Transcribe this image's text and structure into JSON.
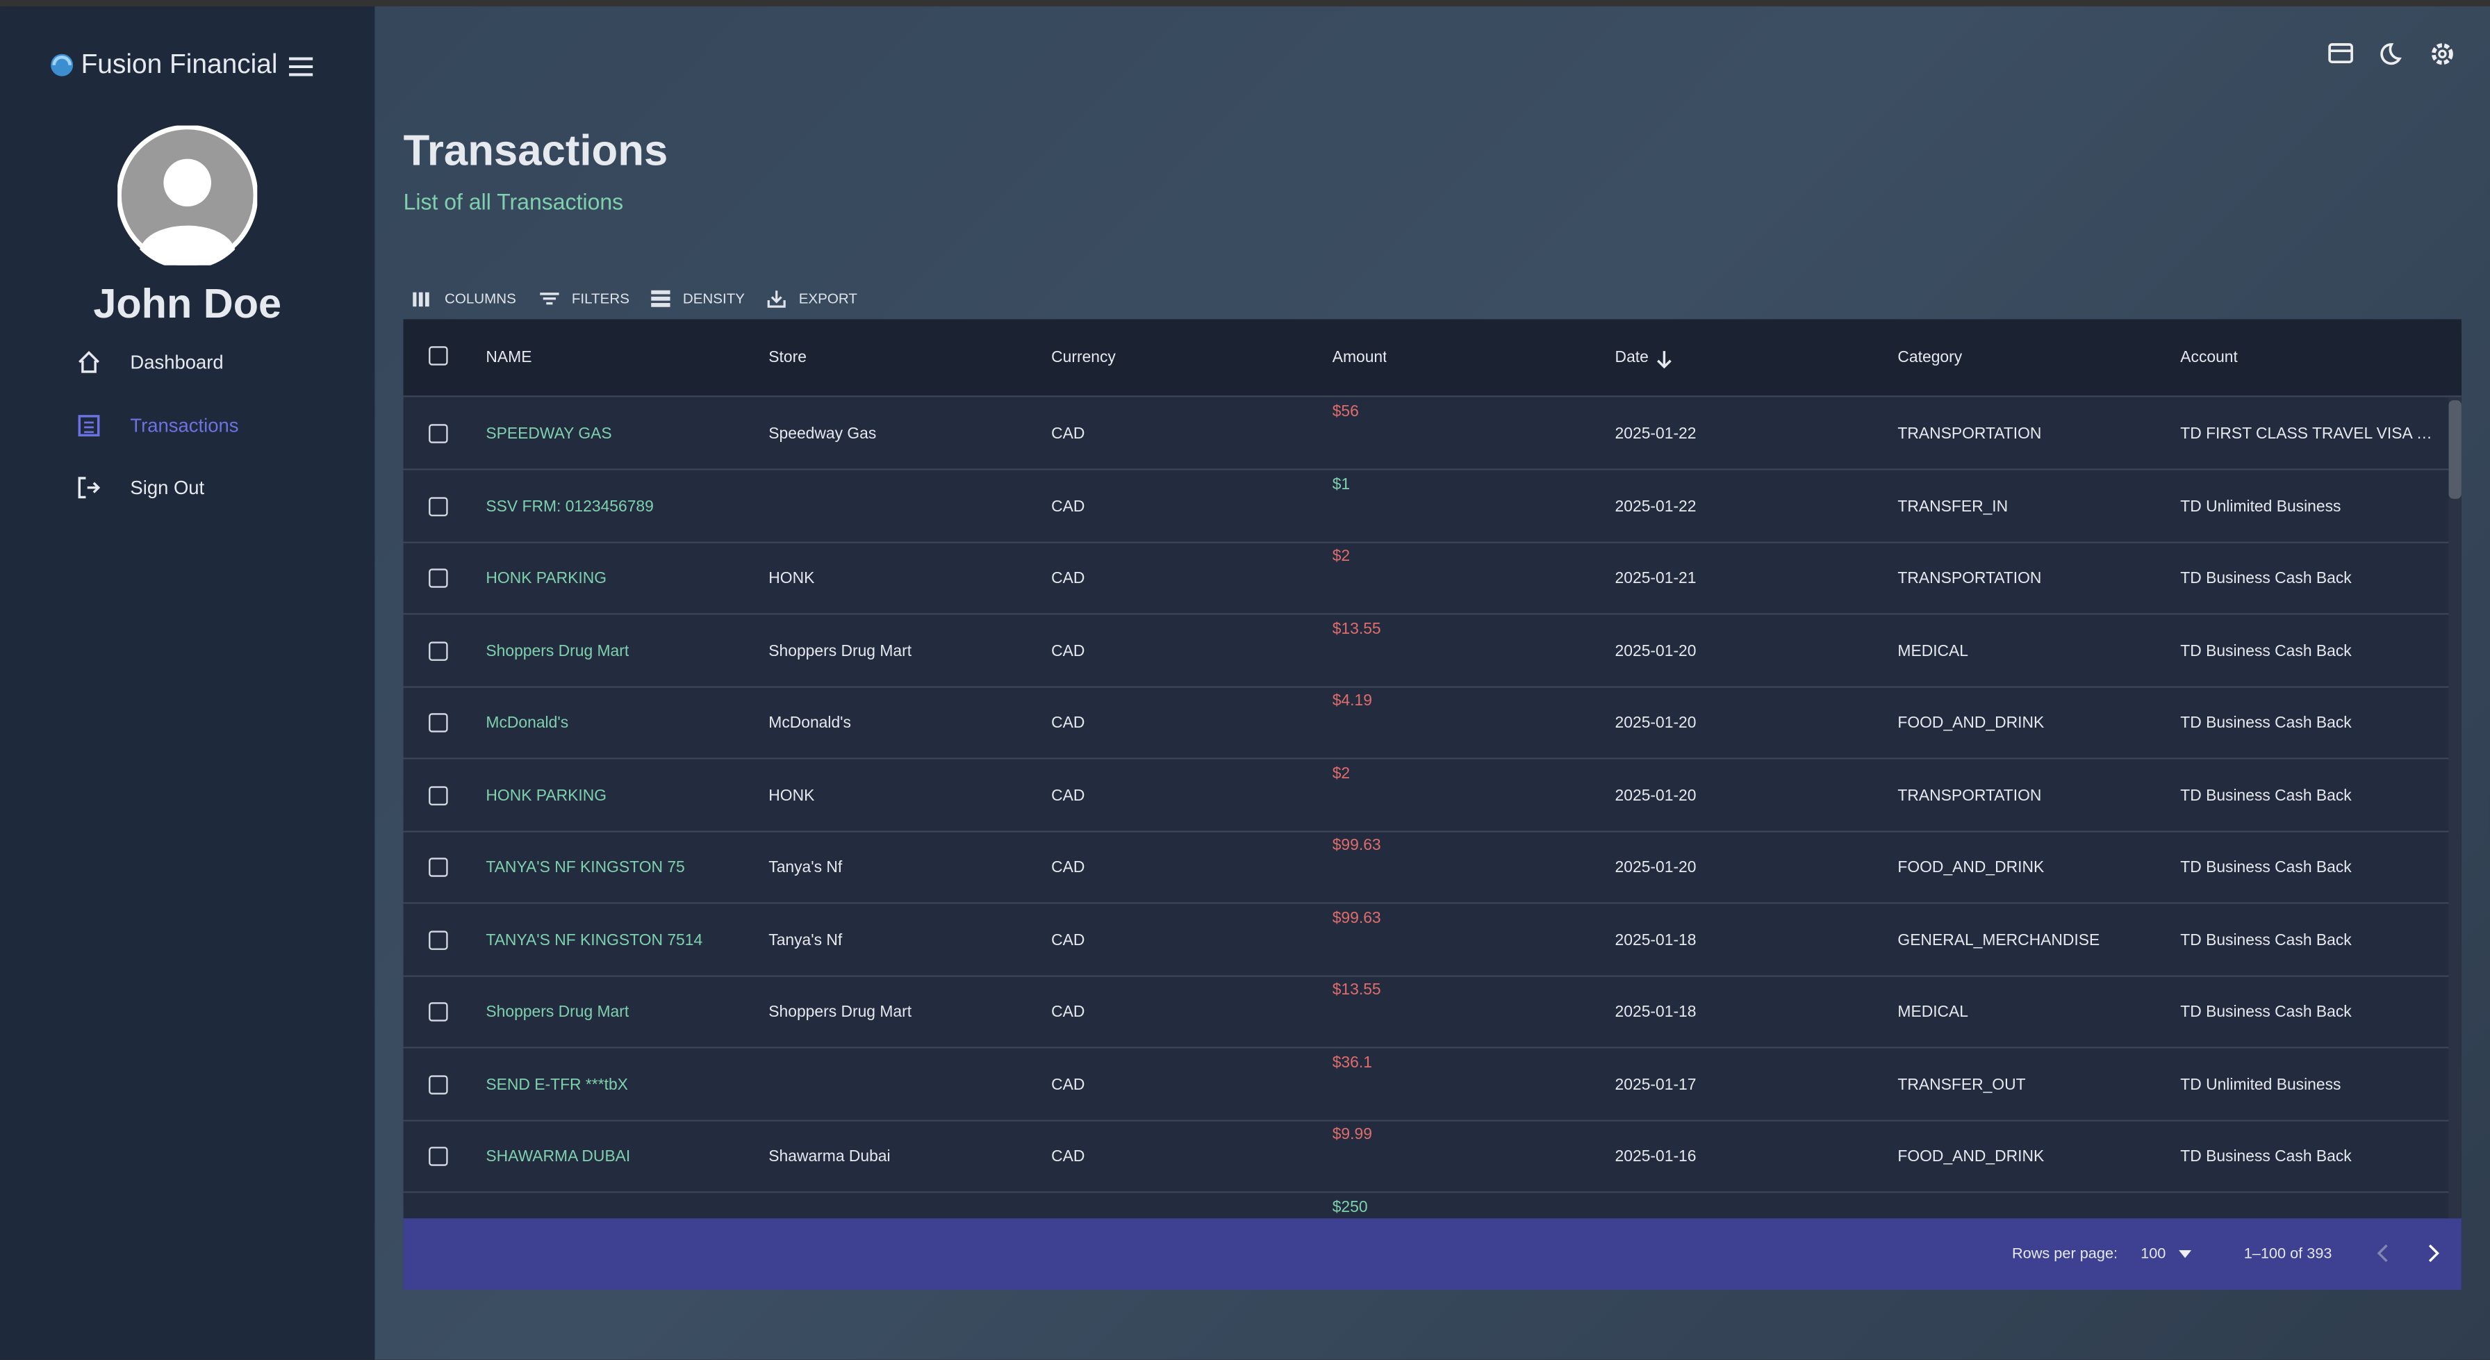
{
  "sidebar": {
    "brand": "Fusion Financial",
    "user": "John Doe",
    "nav": [
      "Dashboard",
      "Transactions",
      "Sign Out"
    ],
    "active_nav": 1
  },
  "header": {
    "title": "Transactions",
    "subtitle": "List of all Transactions"
  },
  "toolbar": [
    "COLUMNS",
    "FILTERS",
    "DENSITY",
    "EXPORT"
  ],
  "table": {
    "columns": [
      "NAME",
      "Store",
      "Currency",
      "Amount",
      "Date",
      "Category",
      "Account"
    ],
    "rows": [
      {
        "name": "SPEEDWAY GAS",
        "store": "Speedway Gas",
        "currency": "CAD",
        "amount": "$56",
        "amount_color": "#e06c6c",
        "date": "2025-01-22",
        "category": "TRANSPORTATION",
        "account": "TD FIRST CLASS TRAVEL VISA INFI…"
      },
      {
        "name": "SSV FRM: 0123456789",
        "store": null,
        "currency": "CAD",
        "amount": "$1",
        "amount_color": "#7fd1ae",
        "date": "2025-01-22",
        "category": "TRANSFER_IN",
        "account": "TD Unlimited Business"
      },
      {
        "name": "HONK PARKING",
        "store": "HONK",
        "currency": "CAD",
        "amount": "$2",
        "amount_color": "#e06c6c",
        "date": "2025-01-21",
        "category": "TRANSPORTATION",
        "account": "TD Business Cash Back"
      },
      {
        "name": "Shoppers Drug Mart",
        "store": "Shoppers Drug Mart",
        "currency": "CAD",
        "amount": "$13.55",
        "amount_color": "#e06c6c",
        "date": "2025-01-20",
        "category": "MEDICAL",
        "account": "TD Business Cash Back"
      },
      {
        "name": "McDonald's",
        "store": "McDonald's",
        "currency": "CAD",
        "amount": "$4.19",
        "amount_color": "#e06c6c",
        "date": "2025-01-20",
        "category": "FOOD_AND_DRINK",
        "account": "TD Business Cash Back"
      },
      {
        "name": "HONK PARKING",
        "store": "HONK",
        "currency": "CAD",
        "amount": "$2",
        "amount_color": "#e06c6c",
        "date": "2025-01-20",
        "category": "TRANSPORTATION",
        "account": "TD Business Cash Back"
      },
      {
        "name": "TANYA'S NF KINGSTON 75",
        "store": "Tanya's Nf",
        "currency": "CAD",
        "amount": "$99.63",
        "amount_color": "#e06c6c",
        "date": "2025-01-20",
        "category": "FOOD_AND_DRINK",
        "account": "TD Business Cash Back"
      },
      {
        "name": "TANYA'S NF KINGSTON 7514",
        "store": "Tanya's Nf",
        "currency": "CAD",
        "amount": "$99.63",
        "amount_color": "#e06c6c",
        "date": "2025-01-18",
        "category": "GENERAL_MERCHANDISE",
        "account": "TD Business Cash Back"
      },
      {
        "name": "Shoppers Drug Mart",
        "store": "Shoppers Drug Mart",
        "currency": "CAD",
        "amount": "$13.55",
        "amount_color": "#e06c6c",
        "date": "2025-01-18",
        "category": "MEDICAL",
        "account": "TD Business Cash Back"
      },
      {
        "name": "SEND E-TFR ***tbX",
        "store": null,
        "currency": "CAD",
        "amount": "$36.1",
        "amount_color": "#e06c6c",
        "date": "2025-01-17",
        "category": "TRANSFER_OUT",
        "account": "TD Unlimited Business"
      },
      {
        "name": "SHAWARMA DUBAI",
        "store": "Shawarma Dubai",
        "currency": "CAD",
        "amount": "$9.99",
        "amount_color": "#e06c6c",
        "date": "2025-01-16",
        "category": "FOOD_AND_DRINK",
        "account": "TD Business Cash Back"
      },
      {
        "name": null,
        "store": null,
        "currency": null,
        "amount": "$250",
        "amount_color": "#7fd1ae",
        "date": null,
        "category": null,
        "account": null
      }
    ]
  },
  "footer": {
    "rows_per_page_label": "Rows per page:",
    "rows_per_page": "100",
    "range": "1–100 of 393"
  }
}
